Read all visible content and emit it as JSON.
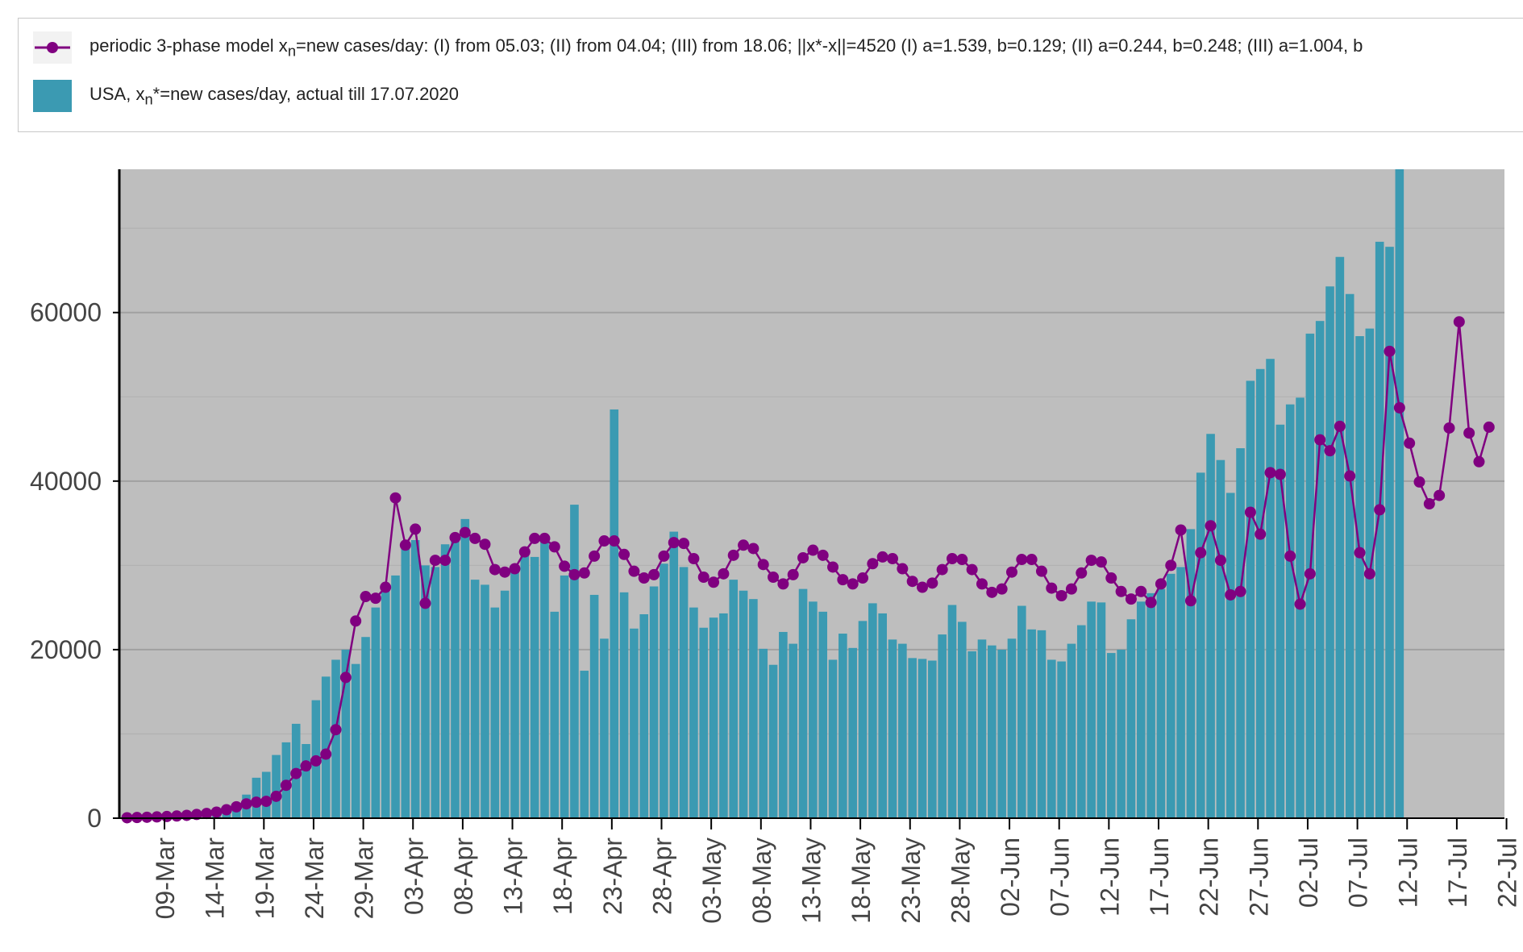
{
  "legend": {
    "model_label": "periodic 3-phase model x<sub>n</sub>=new cases/day: (I) from 05.03; (II) from 04.04; (III) from 18.06; ||x*-x||=4520 (I) a=1.539, b=0.129; (II) a=0.244, b=0.248; (III) a=1.004, b",
    "actual_label": "USA, x<sub>n</sub>*=new cases/day, actual till 17.07.2020"
  },
  "colors": {
    "bar": "#3b9ab2",
    "line": "#800080",
    "plot_bg": "#bebebe",
    "grid": "#a6a6a6"
  },
  "chart_data": {
    "type": "bar",
    "start_date": "2020-03-05",
    "ylim": [
      0,
      77000
    ],
    "yticks": [
      0,
      20000,
      40000,
      60000
    ],
    "xtick_labels": [
      "09-Mar",
      "14-Mar",
      "19-Mar",
      "24-Mar",
      "29-Mar",
      "03-Apr",
      "08-Apr",
      "13-Apr",
      "18-Apr",
      "23-Apr",
      "28-Apr",
      "03-May",
      "08-May",
      "13-May",
      "18-May",
      "23-May",
      "28-May",
      "02-Jun",
      "07-Jun",
      "12-Jun",
      "17-Jun",
      "22-Jun",
      "27-Jun",
      "02-Jul",
      "07-Jul",
      "12-Jul",
      "17-Jul",
      "22-Jul"
    ],
    "series": [
      {
        "name": "USA, xn*=new cases/day, actual till 17.07.2020",
        "type": "bar",
        "values": [
          60,
          110,
          150,
          200,
          280,
          340,
          430,
          520,
          650,
          850,
          1300,
          1800,
          2800,
          4800,
          5500,
          7500,
          9000,
          11200,
          8800,
          14000,
          16800,
          18800,
          20000,
          18300,
          21500,
          25000,
          27000,
          28800,
          32000,
          33000,
          30000,
          29800,
          32500,
          33500,
          35500,
          28300,
          27700,
          25000,
          27000,
          29500,
          31500,
          31000,
          32900,
          24500,
          28800,
          37200,
          17500,
          26500,
          21300,
          48500,
          26800,
          22500,
          24200,
          27500,
          30200,
          34000,
          29800,
          25000,
          22600,
          23800,
          24300,
          28300,
          27000,
          26000,
          20100,
          18200,
          22100,
          20700,
          27200,
          25700,
          24500,
          18800,
          21900,
          20200,
          23400,
          25500,
          24300,
          21200,
          20700,
          19000,
          18900,
          18700,
          21800,
          25300,
          23300,
          19800,
          21200,
          20500,
          20000,
          21300,
          25200,
          22400,
          22300,
          18800,
          18600,
          20700,
          22900,
          25700,
          25600,
          19600,
          20000,
          23600,
          25700,
          26700,
          27200,
          29000,
          29800,
          34300,
          41000,
          45600,
          42500,
          38600,
          43900,
          51900,
          53300,
          54500,
          46700,
          49100,
          49900,
          57500,
          59000,
          63100,
          66600,
          62200,
          57200,
          58100,
          68400,
          67800,
          77000
        ]
      },
      {
        "name": "periodic 3-phase model",
        "type": "line",
        "values": [
          50,
          80,
          110,
          150,
          200,
          260,
          340,
          440,
          560,
          720,
          1000,
          1350,
          1700,
          1900,
          2000,
          2600,
          3900,
          5300,
          6200,
          6800,
          7600,
          10500,
          16700,
          23400,
          26300,
          26100,
          27400,
          38000,
          32400,
          34300,
          25500,
          30600,
          30600,
          33300,
          33900,
          33200,
          32500,
          29500,
          29200,
          29600,
          31600,
          33200,
          33200,
          32200,
          29900,
          28900,
          29100,
          31100,
          32900,
          32900,
          31300,
          29300,
          28500,
          28900,
          31100,
          32700,
          32600,
          30800,
          28600,
          28000,
          29000,
          31200,
          32400,
          32000,
          30100,
          28600,
          27800,
          28900,
          30900,
          31800,
          31200,
          29800,
          28300,
          27800,
          28500,
          30200,
          31000,
          30800,
          29600,
          28100,
          27400,
          27900,
          29500,
          30800,
          30700,
          29500,
          27800,
          26800,
          27200,
          29200,
          30700,
          30700,
          29300,
          27300,
          26400,
          27200,
          29100,
          30600,
          30400,
          28500,
          26900,
          26000,
          26900,
          25600,
          27800,
          30000,
          34200,
          25800,
          31500,
          34700,
          30600,
          26500,
          26900,
          36300,
          33700,
          41000,
          40800,
          31100,
          25400,
          29000,
          44900,
          43600,
          46500,
          40600,
          31500,
          29000,
          36600,
          55400,
          48700,
          44500,
          39900,
          37300,
          38300,
          46300,
          58900,
          45700,
          42300,
          46400
        ]
      }
    ]
  }
}
